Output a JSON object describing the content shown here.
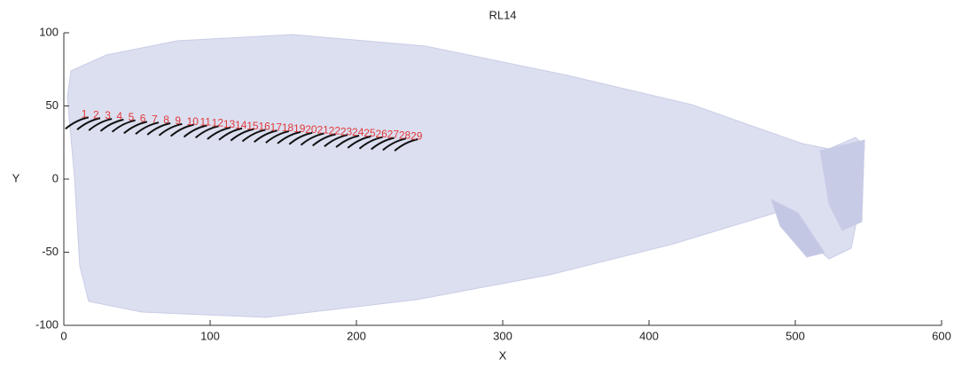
{
  "chart_data": {
    "type": "scatter",
    "title": "RL14",
    "x_label": "X",
    "y_label": "Y",
    "x": [
      12,
      20,
      28,
      36,
      44,
      52,
      60,
      68,
      76,
      84,
      93,
      101,
      109,
      117,
      125,
      133,
      141,
      149,
      157,
      165,
      173,
      181,
      189,
      197,
      205,
      213,
      221,
      229,
      237
    ],
    "values": [
      44,
      43.5,
      43,
      42.5,
      42,
      41,
      40.5,
      40,
      39.5,
      39,
      38.5,
      38,
      37,
      36.5,
      36,
      35.5,
      35,
      34.5,
      34,
      33.5,
      33,
      32.5,
      32,
      31.5,
      31,
      30.5,
      30,
      29.5,
      29
    ],
    "point_labels": [
      "1",
      "2",
      "3",
      "4",
      "5",
      "6",
      "7",
      "8",
      "9",
      "10",
      "11",
      "12",
      "13",
      "14",
      "15",
      "16",
      "17",
      "18",
      "19",
      "20",
      "21",
      "22",
      "23",
      "24",
      "25",
      "26",
      "27",
      "28",
      "29"
    ],
    "color": "#111111",
    "label_color": "#e23a3a",
    "xlim": [
      0,
      600
    ],
    "xticks": [
      0,
      100,
      200,
      300,
      400,
      500,
      600
    ],
    "ylim": [
      -100,
      100
    ],
    "yticks": [
      -100,
      -50,
      0,
      50,
      100
    ]
  }
}
